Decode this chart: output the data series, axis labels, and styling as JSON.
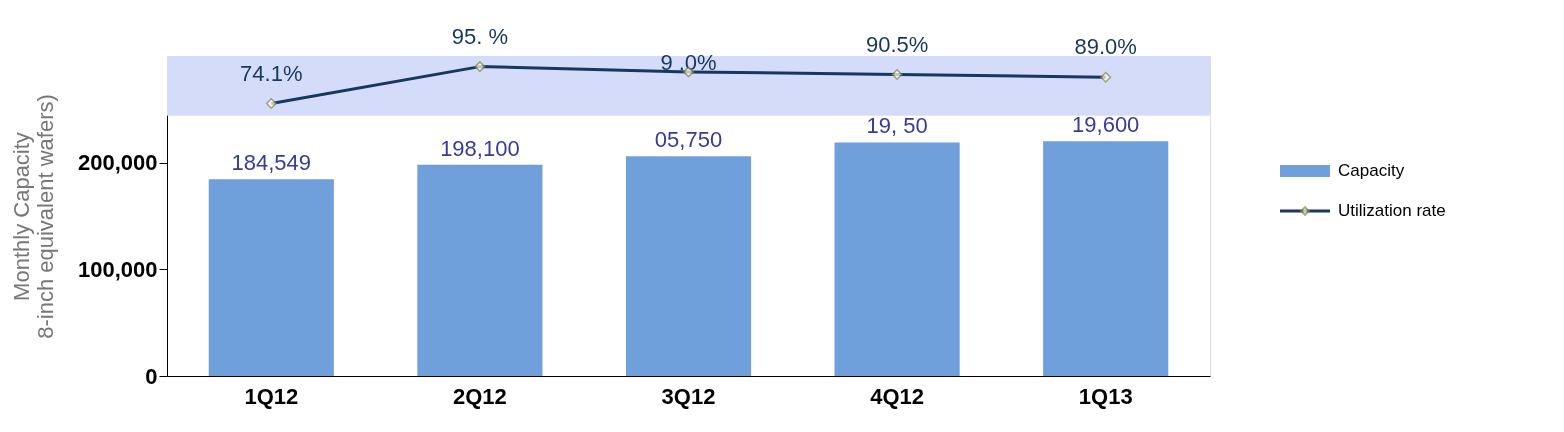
{
  "chart_data": {
    "type": "bar",
    "categories": [
      "1Q12",
      "2Q12",
      "3Q12",
      "4Q12",
      "1Q13"
    ],
    "ylabel": "Monthly Capacity\n8-inch equivalent wafers)",
    "ylim": [
      0,
      300000
    ],
    "yticks": [
      0,
      {
        "value": 100000,
        "label": "100,000"
      },
      {
        "value": 200000,
        "label": "200,000"
      }
    ],
    "y2lim": [
      -80,
      101
    ],
    "grid": false,
    "legend": "right",
    "bands": [
      {
        "axis": "y",
        "from": 244000,
        "to": 300000,
        "color": "#d4dcfa"
      }
    ],
    "annotations": [
      {
        "text": "05,750",
        "x": "3Q12",
        "y": 206000
      },
      {
        "text": "19,  50",
        "x": "4Q12",
        "y": 219000
      },
      {
        "text": "19,600",
        "x": "1Q13",
        "y": 220000
      },
      {
        "text": "9  .0%",
        "x": "3Q12",
        "y": 293000
      }
    ],
    "series": [
      {
        "name": "Capacity",
        "color": "#6fa0dc",
        "values": [
          184549,
          198100,
          206000,
          219000,
          220000
        ],
        "value_labels": [
          "184,549",
          "198,100",
          null,
          null,
          null
        ]
      },
      {
        "name": "Utilization rate",
        "type": "line",
        "axis": "y2",
        "color": "#17375e",
        "marker": "diamond",
        "values": [
          74.1,
          95.0,
          92.0,
          90.5,
          89.0
        ],
        "value_labels": [
          "74.1%",
          "95.  %",
          null,
          "90.5%",
          "89.0%"
        ]
      }
    ]
  }
}
